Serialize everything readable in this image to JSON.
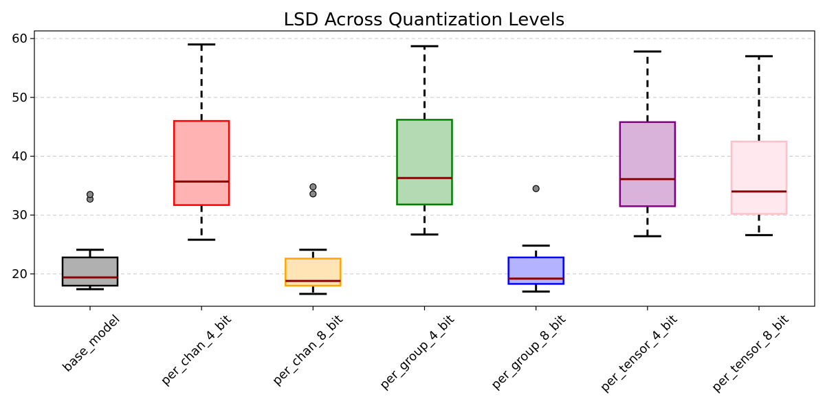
{
  "chart_data": {
    "type": "box",
    "title": "LSD Across Quantization Levels",
    "xlabel": "",
    "ylabel": "",
    "ylim": [
      14.5,
      61.3
    ],
    "yticks": [
      20,
      30,
      40,
      50,
      60
    ],
    "grid": "y-dashed",
    "categories": [
      "base_model",
      "per_chan_4_bit",
      "per_chan_8_bit",
      "per_group_4_bit",
      "per_group_8_bit",
      "per_tensor_4_bit",
      "per_tensor_8_bit"
    ],
    "boxes": [
      {
        "label": "base_model",
        "whisker_low": 17.4,
        "q1": 18.0,
        "median": 19.4,
        "q3": 22.8,
        "whisker_high": 24.1,
        "outliers": [
          32.7,
          33.5
        ],
        "fill": "#b0b0b0",
        "edge": "#000000"
      },
      {
        "label": "per_chan_4_bit",
        "whisker_low": 25.8,
        "q1": 31.7,
        "median": 35.7,
        "q3": 46.0,
        "whisker_high": 59.0,
        "outliers": [],
        "fill": "#ffb3b3",
        "edge": "#ff0000"
      },
      {
        "label": "per_chan_8_bit",
        "whisker_low": 16.6,
        "q1": 18.0,
        "median": 18.8,
        "q3": 22.6,
        "whisker_high": 24.1,
        "outliers": [
          33.6,
          34.8
        ],
        "fill": "#ffe4b5",
        "edge": "#ffa500"
      },
      {
        "label": "per_group_4_bit",
        "whisker_low": 26.7,
        "q1": 31.8,
        "median": 36.3,
        "q3": 46.2,
        "whisker_high": 58.7,
        "outliers": [],
        "fill": "#b3dab3",
        "edge": "#008000"
      },
      {
        "label": "per_group_8_bit",
        "whisker_low": 17.0,
        "q1": 18.3,
        "median": 19.2,
        "q3": 22.8,
        "whisker_high": 24.8,
        "outliers": [
          34.5
        ],
        "fill": "#b3b3ff",
        "edge": "#0000ff"
      },
      {
        "label": "per_tensor_4_bit",
        "whisker_low": 26.4,
        "q1": 31.5,
        "median": 36.1,
        "q3": 45.8,
        "whisker_high": 57.8,
        "outliers": [],
        "fill": "#d9b3d9",
        "edge": "#800080"
      },
      {
        "label": "per_tensor_8_bit",
        "whisker_low": 26.6,
        "q1": 30.2,
        "median": 34.0,
        "q3": 42.5,
        "whisker_high": 57.0,
        "outliers": [],
        "fill": "#ffe8ee",
        "edge": "#ffc0cb"
      }
    ],
    "median_color": "#8b0000"
  }
}
